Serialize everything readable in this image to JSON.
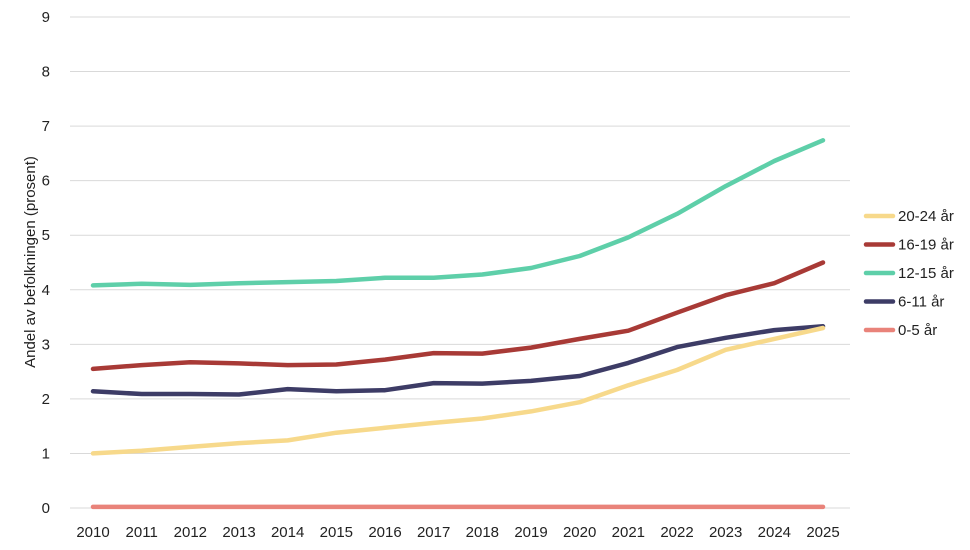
{
  "chart_data": {
    "type": "line",
    "title": "",
    "xlabel": "",
    "ylabel": "Andel av befolkningen (prosent)",
    "ylim": [
      0,
      9
    ],
    "yticks": [
      0,
      1,
      2,
      3,
      4,
      5,
      6,
      7,
      8,
      9
    ],
    "grid": true,
    "legend_position": "right",
    "x": [
      "2010",
      "2011",
      "2012",
      "2013",
      "2014",
      "2015",
      "2016",
      "2017",
      "2018",
      "2019",
      "2020",
      "2021",
      "2022",
      "2023",
      "2024",
      "2025"
    ],
    "series": [
      {
        "name": "20-24 år",
        "color": "#f7d98b",
        "values": [
          1.0,
          1.05,
          1.12,
          1.19,
          1.24,
          1.38,
          1.47,
          1.56,
          1.64,
          1.77,
          1.94,
          2.25,
          2.53,
          2.9,
          3.1,
          3.3
        ]
      },
      {
        "name": "16-19 år",
        "color": "#a83a36",
        "values": [
          2.55,
          2.62,
          2.67,
          2.65,
          2.62,
          2.63,
          2.72,
          2.84,
          2.83,
          2.94,
          3.1,
          3.25,
          3.58,
          3.9,
          4.12,
          4.5
        ]
      },
      {
        "name": "12-15 år",
        "color": "#5ecfa9",
        "values": [
          4.08,
          4.11,
          4.09,
          4.12,
          4.14,
          4.16,
          4.22,
          4.22,
          4.28,
          4.4,
          4.62,
          4.96,
          5.39,
          5.9,
          6.36,
          6.74
        ]
      },
      {
        "name": "6-11 år",
        "color": "#3d3c66",
        "values": [
          2.14,
          2.09,
          2.09,
          2.08,
          2.18,
          2.14,
          2.16,
          2.29,
          2.28,
          2.33,
          2.42,
          2.66,
          2.95,
          3.12,
          3.26,
          3.33
        ]
      },
      {
        "name": "0-5 år",
        "color": "#e9837a",
        "values": [
          0.02,
          0.02,
          0.02,
          0.02,
          0.02,
          0.02,
          0.02,
          0.02,
          0.02,
          0.02,
          0.02,
          0.02,
          0.02,
          0.02,
          0.02,
          0.02
        ]
      }
    ]
  }
}
